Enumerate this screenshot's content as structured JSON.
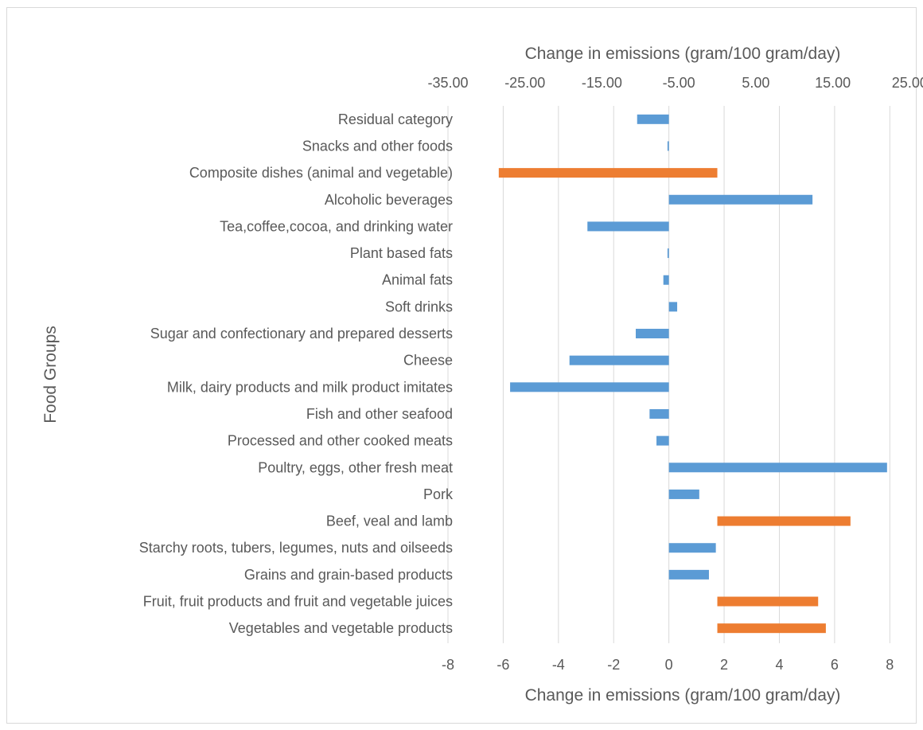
{
  "chart_data": {
    "type": "bar",
    "orientation": "horizontal",
    "ylabel": "Food Groups",
    "categories": [
      "Residual category",
      "Snacks and other foods",
      "Composite dishes (animal and vegetable)",
      "Alcoholic beverages",
      "Tea,coffee,cocoa, and drinking water ",
      "Plant based fats",
      "Animal fats",
      "Soft drinks",
      "Sugar and confectionary and prepared desserts",
      "Cheese",
      "Milk, dairy products and milk product imitates",
      "Fish and other seafood",
      "Processed and other cooked meats",
      "Poultry, eggs, other fresh meat",
      "Pork",
      "Beef, veal and lamb",
      "Starchy roots, tubers, legumes, nuts and oilseeds",
      "Grains and grain-based products",
      "Fruit, fruit products and fruit and vegetable juices",
      "Vegetables and vegetable products "
    ],
    "axes": {
      "bottom": {
        "label": "Change in emissions (gram/100 gram/day)",
        "range": [
          -8,
          9
        ],
        "ticks": [
          -8,
          -6,
          -4,
          -2,
          0,
          2,
          4,
          6,
          8
        ],
        "tick_labels": [
          "-8",
          "-6",
          "-4",
          "-2",
          "0",
          "2",
          "4",
          "6",
          "8"
        ]
      },
      "top": {
        "label": "Change in emissions (gram/100 gram/day)",
        "range": [
          -35,
          26
        ],
        "ticks": [
          -35,
          -25,
          -15,
          -5,
          5,
          15,
          25
        ],
        "tick_labels": [
          "-35.00",
          "-25.00",
          "-15.00",
          "-5.00",
          "5.00",
          "15.00",
          "25.00"
        ]
      }
    },
    "grid": true,
    "series": [
      {
        "axis": "bottom",
        "color": "#5b9bd5",
        "values": [
          -1.15,
          -0.05,
          null,
          5.2,
          -2.95,
          -0.05,
          -0.2,
          0.3,
          -1.2,
          -3.6,
          -5.75,
          -0.7,
          -0.45,
          7.9,
          1.1,
          null,
          1.7,
          1.45,
          null,
          null
        ]
      },
      {
        "axis": "top",
        "color": "#ed7d31",
        "values": [
          null,
          null,
          -28.4,
          null,
          null,
          null,
          null,
          null,
          null,
          null,
          null,
          null,
          null,
          null,
          null,
          17.3,
          null,
          null,
          13.1,
          14.1
        ]
      }
    ]
  }
}
